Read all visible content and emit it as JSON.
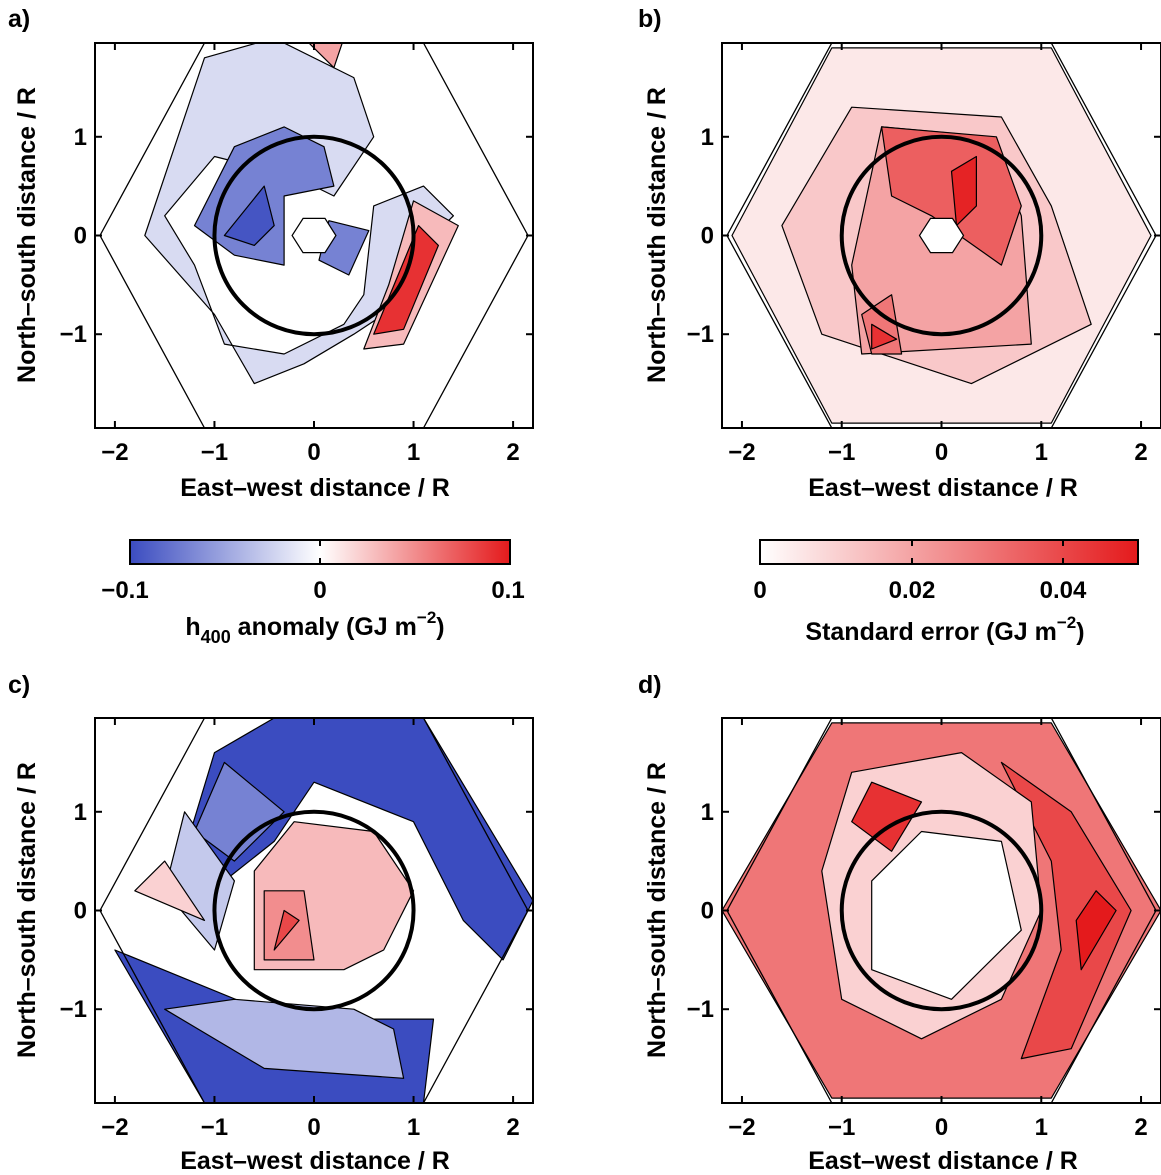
{
  "chart_data": [
    {
      "panel": "a)",
      "type": "heatmap",
      "xlabel": "East–west distance / R",
      "ylabel": "North–south distance / R",
      "xticks": [
        "−2",
        "−1",
        "0",
        "1",
        "2"
      ],
      "yticks": [
        "−1",
        "0",
        "1"
      ],
      "xlim": [
        -2.2,
        2.2
      ],
      "ylim": [
        -1.95,
        1.95
      ],
      "colormap": "blue-white-red",
      "colorbar": {
        "ticks": [
          "−0.1",
          "0",
          "0.1"
        ],
        "range": [
          -0.1,
          0.1
        ],
        "label_main": "h",
        "label_sub": "400",
        "label_rest": " anomaly (GJ m",
        "label_sup": "−2",
        "label_end": ")"
      },
      "regions": [
        {
          "v": -0.02,
          "pts": [
            [
              -1.1,
              1.8
            ],
            [
              -0.4,
              2
            ],
            [
              0.4,
              1.6
            ],
            [
              0.6,
              1
            ],
            [
              0.2,
              0.4
            ],
            [
              -0.2,
              0.6
            ],
            [
              -1,
              0.8
            ],
            [
              -1.5,
              0.2
            ],
            [
              -1.2,
              -0.3
            ],
            [
              -0.9,
              -1.1
            ],
            [
              -0.3,
              -1.2
            ],
            [
              0.3,
              -0.9
            ],
            [
              0.5,
              -0.6
            ],
            [
              0.6,
              0.3
            ],
            [
              1.1,
              0.5
            ],
            [
              1.4,
              0.2
            ],
            [
              1,
              -0.2
            ],
            [
              0.7,
              -0.8
            ],
            [
              0.4,
              -1
            ],
            [
              -0.1,
              -1.3
            ],
            [
              -0.6,
              -1.5
            ],
            [
              -1,
              -0.8
            ],
            [
              -1.7,
              0
            ]
          ]
        },
        {
          "v": -0.07,
          "pts": [
            [
              -0.8,
              0.9
            ],
            [
              -0.3,
              1.1
            ],
            [
              0.1,
              0.9
            ],
            [
              0.2,
              0.5
            ],
            [
              -0.3,
              0.4
            ],
            [
              -0.3,
              -0.3
            ],
            [
              -0.8,
              -0.2
            ],
            [
              -1.2,
              0.1
            ]
          ]
        },
        {
          "v": -0.095,
          "pts": [
            [
              -0.5,
              0.5
            ],
            [
              -0.4,
              0.1
            ],
            [
              -0.6,
              -0.1
            ],
            [
              -0.9,
              0.0
            ]
          ]
        },
        {
          "v": -0.07,
          "pts": [
            [
              0.15,
              0.15
            ],
            [
              0.55,
              0.05
            ],
            [
              0.35,
              -0.4
            ],
            [
              0.05,
              -0.25
            ]
          ]
        },
        {
          "v": 0.03,
          "pts": [
            [
              1.0,
              0.35
            ],
            [
              1.45,
              0.1
            ],
            [
              0.9,
              -1.1
            ],
            [
              0.5,
              -1.15
            ],
            [
              0.75,
              -0.5
            ]
          ]
        },
        {
          "v": 0.09,
          "pts": [
            [
              1.05,
              0.1
            ],
            [
              1.25,
              -0.1
            ],
            [
              0.9,
              -0.95
            ],
            [
              0.6,
              -1.0
            ]
          ]
        },
        {
          "v": 0.04,
          "pts": [
            [
              -0.1,
              2
            ],
            [
              0.3,
              2
            ],
            [
              0.2,
              1.7
            ]
          ]
        }
      ],
      "circle_radius": 1
    },
    {
      "panel": "b)",
      "type": "heatmap",
      "xlabel": "East–west distance / R",
      "ylabel": "North–south distance / R",
      "xticks": [
        "−2",
        "−1",
        "0",
        "1",
        "2"
      ],
      "yticks": [
        "−1",
        "0",
        "1"
      ],
      "xlim": [
        -2.2,
        2.2
      ],
      "ylim": [
        -1.95,
        1.95
      ],
      "colormap": "white-red",
      "colorbar": {
        "ticks": [
          "0",
          "0.02",
          "0.04"
        ],
        "range": [
          0,
          0.05
        ],
        "label_rest": "Standard error (GJ m",
        "label_sup": "−2",
        "label_end": ")"
      },
      "regions": [
        {
          "v": 0.005,
          "pts": [
            [
              -1.1,
              1.9
            ],
            [
              1.1,
              1.9
            ],
            [
              2.1,
              0
            ],
            [
              1.1,
              -1.9
            ],
            [
              -1.1,
              -1.9
            ],
            [
              -2.1,
              0
            ]
          ]
        },
        {
          "v": 0.012,
          "pts": [
            [
              -0.9,
              1.3
            ],
            [
              0.6,
              1.2
            ],
            [
              1.1,
              0.3
            ],
            [
              1.5,
              -0.9
            ],
            [
              0.3,
              -1.5
            ],
            [
              -1.2,
              -1.0
            ],
            [
              -1.6,
              0.1
            ]
          ]
        },
        {
          "v": 0.02,
          "pts": [
            [
              -0.6,
              1.1
            ],
            [
              0.5,
              1.0
            ],
            [
              0.8,
              0.2
            ],
            [
              0.9,
              -1.1
            ],
            [
              -0.8,
              -1.2
            ],
            [
              -0.9,
              -0.3
            ]
          ]
        },
        {
          "v": 0.035,
          "pts": [
            [
              -0.6,
              1.1
            ],
            [
              0.55,
              1.0
            ],
            [
              0.8,
              0.3
            ],
            [
              0.6,
              -0.3
            ],
            [
              -0.1,
              0.2
            ],
            [
              -0.5,
              0.4
            ]
          ]
        },
        {
          "v": 0.048,
          "pts": [
            [
              0.1,
              0.65
            ],
            [
              0.35,
              0.8
            ],
            [
              0.35,
              0.3
            ],
            [
              0.15,
              0.1
            ]
          ]
        },
        {
          "v": 0.03,
          "pts": [
            [
              -0.8,
              -0.8
            ],
            [
              -0.5,
              -0.6
            ],
            [
              -0.4,
              -1.2
            ],
            [
              -0.7,
              -1.2
            ]
          ]
        },
        {
          "v": 0.045,
          "pts": [
            [
              -0.7,
              -0.9
            ],
            [
              -0.45,
              -1.05
            ],
            [
              -0.7,
              -1.15
            ]
          ]
        }
      ],
      "circle_radius": 1
    },
    {
      "panel": "c)",
      "type": "heatmap",
      "xlabel": "East–west distance / R",
      "ylabel": "North–south distance / R",
      "xticks": [
        "−2",
        "−1",
        "0",
        "1",
        "2"
      ],
      "yticks": [
        "−1",
        "0",
        "1"
      ],
      "xlim": [
        -2.2,
        2.2
      ],
      "ylim": [
        -1.95,
        1.95
      ],
      "colormap": "blue-white-red",
      "regions": [
        {
          "v": -0.1,
          "pts": [
            [
              -0.4,
              1.95
            ],
            [
              1.1,
              1.95
            ],
            [
              2.2,
              0.1
            ],
            [
              1.9,
              -0.5
            ],
            [
              1.5,
              -0.1
            ],
            [
              1.0,
              0.9
            ],
            [
              0.0,
              1.3
            ],
            [
              -0.4,
              0.7
            ],
            [
              -0.9,
              0.3
            ],
            [
              -1.3,
              0.6
            ],
            [
              -1.0,
              1.6
            ]
          ]
        },
        {
          "v": -0.07,
          "pts": [
            [
              -0.9,
              1.5
            ],
            [
              -0.3,
              1.0
            ],
            [
              -0.8,
              0.5
            ],
            [
              -1.2,
              0.8
            ]
          ]
        },
        {
          "v": -0.03,
          "pts": [
            [
              -1.3,
              1.0
            ],
            [
              -0.8,
              0.3
            ],
            [
              -1.0,
              -0.4
            ],
            [
              -1.5,
              0.2
            ]
          ]
        },
        {
          "v": -0.1,
          "pts": [
            [
              -2.0,
              -0.4
            ],
            [
              -0.3,
              -1.1
            ],
            [
              0.3,
              -1.1
            ],
            [
              1.2,
              -1.1
            ],
            [
              1.1,
              -1.95
            ],
            [
              -1.1,
              -1.95
            ]
          ]
        },
        {
          "v": -0.04,
          "pts": [
            [
              -0.8,
              -0.9
            ],
            [
              0.4,
              -1.0
            ],
            [
              0.8,
              -1.2
            ],
            [
              0.9,
              -1.7
            ],
            [
              -0.5,
              -1.6
            ],
            [
              -1.5,
              -1.0
            ]
          ]
        },
        {
          "v": 0.02,
          "pts": [
            [
              -1.8,
              0.2
            ],
            [
              -1.5,
              0.5
            ],
            [
              -1.1,
              -0.1
            ]
          ]
        },
        {
          "v": 0.03,
          "pts": [
            [
              -0.2,
              0.9
            ],
            [
              0.6,
              0.8
            ],
            [
              1.0,
              0.2
            ],
            [
              0.7,
              -0.4
            ],
            [
              0.3,
              -0.6
            ],
            [
              -0.6,
              -0.6
            ],
            [
              -0.6,
              0.4
            ]
          ]
        },
        {
          "v": 0.05,
          "pts": [
            [
              -0.5,
              0.2
            ],
            [
              -0.1,
              0.2
            ],
            [
              0.0,
              -0.5
            ],
            [
              -0.5,
              -0.5
            ]
          ]
        },
        {
          "v": 0.08,
          "pts": [
            [
              -0.3,
              0.0
            ],
            [
              -0.15,
              -0.1
            ],
            [
              -0.4,
              -0.4
            ]
          ]
        }
      ],
      "circle_radius": 1
    },
    {
      "panel": "d)",
      "type": "heatmap",
      "xlabel": "East–west distance / R",
      "ylabel": "North–south distance / R",
      "xticks": [
        "−2",
        "−1",
        "0",
        "1",
        "2"
      ],
      "yticks": [
        "−1",
        "0",
        "1"
      ],
      "xlim": [
        -2.2,
        2.2
      ],
      "ylim": [
        -1.95,
        1.95
      ],
      "colormap": "white-red",
      "regions": [
        {
          "v": 0.03,
          "pts": [
            [
              -1.1,
              1.9
            ],
            [
              1.1,
              1.9
            ],
            [
              2.2,
              0
            ],
            [
              1.1,
              -1.9
            ],
            [
              -1.1,
              -1.9
            ],
            [
              -2.2,
              0
            ]
          ]
        },
        {
          "v": 0.04,
          "pts": [
            [
              0.6,
              1.5
            ],
            [
              1.3,
              1.0
            ],
            [
              1.9,
              0
            ],
            [
              1.3,
              -1.4
            ],
            [
              0.8,
              -1.5
            ],
            [
              1.2,
              -0.4
            ],
            [
              1.1,
              0.5
            ]
          ]
        },
        {
          "v": 0.05,
          "pts": [
            [
              1.55,
              0.2
            ],
            [
              1.75,
              0
            ],
            [
              1.4,
              -0.6
            ],
            [
              1.35,
              -0.1
            ]
          ]
        },
        {
          "v": 0.01,
          "pts": [
            [
              -0.9,
              1.4
            ],
            [
              0.2,
              1.6
            ],
            [
              0.9,
              1.1
            ],
            [
              1.0,
              0.0
            ],
            [
              0.6,
              -0.9
            ],
            [
              -0.2,
              -1.3
            ],
            [
              -1.0,
              -0.9
            ],
            [
              -1.2,
              0.4
            ]
          ]
        },
        {
          "v": 0.045,
          "pts": [
            [
              -0.7,
              1.3
            ],
            [
              -0.2,
              1.1
            ],
            [
              -0.5,
              0.6
            ],
            [
              -0.9,
              0.9
            ]
          ]
        },
        {
          "v": 0.0,
          "pts": [
            [
              -0.2,
              0.8
            ],
            [
              0.6,
              0.7
            ],
            [
              0.8,
              -0.2
            ],
            [
              0.1,
              -0.9
            ],
            [
              -0.7,
              -0.6
            ],
            [
              -0.7,
              0.3
            ]
          ]
        }
      ],
      "circle_radius": 1
    }
  ]
}
